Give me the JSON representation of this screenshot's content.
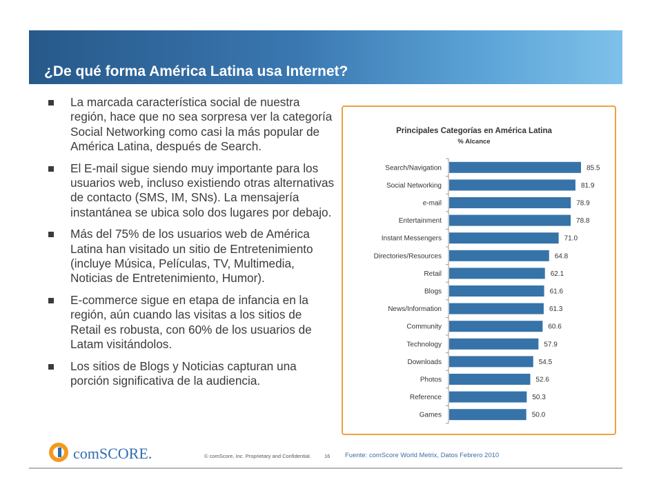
{
  "slide": {
    "title": "¿De qué forma América Latina usa Internet?",
    "bullets": [
      "La marcada característica social de  nuestra región, hace que no sea sorpresa ver  la categoría  Social Networking como casi la más popular de América Latina, después de Search.",
      "El E-mail sigue siendo muy importante para los usuarios web, incluso existiendo otras alternativas de contacto (SMS, IM, SNs). La mensajería instantánea se ubica solo dos lugares por debajo.",
      "Más del 75% de los usuarios web de América Latina han visitado un sitio de Entretenimiento (incluye Música, Películas, TV, Multimedia, Noticias de Entretenimiento, Humor).",
      "E-commerce  sigue en etapa de infancia en la región, aún cuando las visitas a los sitios de Retail es robusta, con 60% de los usuarios de Latam visitándolos.",
      "Los sitios de Blogs y Noticias capturan una porción significativa de la audiencia."
    ]
  },
  "footer": {
    "logo_text": "comSCORE.",
    "copyright": "© comScore, Inc.  Proprietary and Confidential.",
    "page_number": "16",
    "source": "Fuente:  comScore World Metrix, Datos Febrero 2010"
  },
  "colors": {
    "bar": "#3673a8",
    "title_band_start": "#27598a",
    "title_band_end": "#7ec1ea",
    "chart_border": "#f0a040",
    "text": "#3b3b3b",
    "logo_orange": "#f29a1f",
    "logo_blue": "#2f6db0"
  },
  "chart_data": {
    "type": "bar",
    "orientation": "horizontal",
    "title": "Principales Categorías  en América Latina",
    "subtitle": "% Alcance",
    "categories": [
      "Search/Navigation",
      "Social Networking",
      "e-mail",
      "Entertainment",
      "Instant Messengers",
      "Directories/Resources",
      "Retail",
      "Blogs",
      "News/Information",
      "Community",
      "Technology",
      "Downloads",
      "Photos",
      "Reference",
      "Games"
    ],
    "values": [
      85.5,
      81.9,
      78.9,
      78.8,
      71.0,
      64.8,
      62.1,
      61.6,
      61.3,
      60.6,
      57.9,
      54.5,
      52.6,
      50.3,
      50.0
    ],
    "value_labels": [
      "85.5",
      "81.9",
      "78.9",
      "78.8",
      "71.0",
      "64.8",
      "62.1",
      "61.6",
      "61.3",
      "60.6",
      "57.9",
      "54.5",
      "52.6",
      "50.3",
      "50.0"
    ],
    "xlim": [
      0,
      100
    ],
    "xlabel": "",
    "ylabel": "",
    "grid": false
  }
}
